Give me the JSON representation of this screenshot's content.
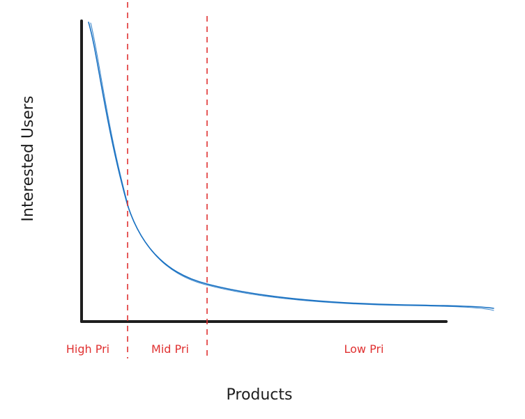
{
  "axes": {
    "y_label": "Interested Users",
    "x_label": "Products"
  },
  "zones": [
    {
      "label": "High Pri"
    },
    {
      "label": "Mid Pri"
    },
    {
      "label": "Low Pri"
    }
  ],
  "colors": {
    "axis": "#1e1e1e",
    "curve": "#1971c2",
    "divider": "#e03131",
    "zone_label": "#e03131"
  }
}
